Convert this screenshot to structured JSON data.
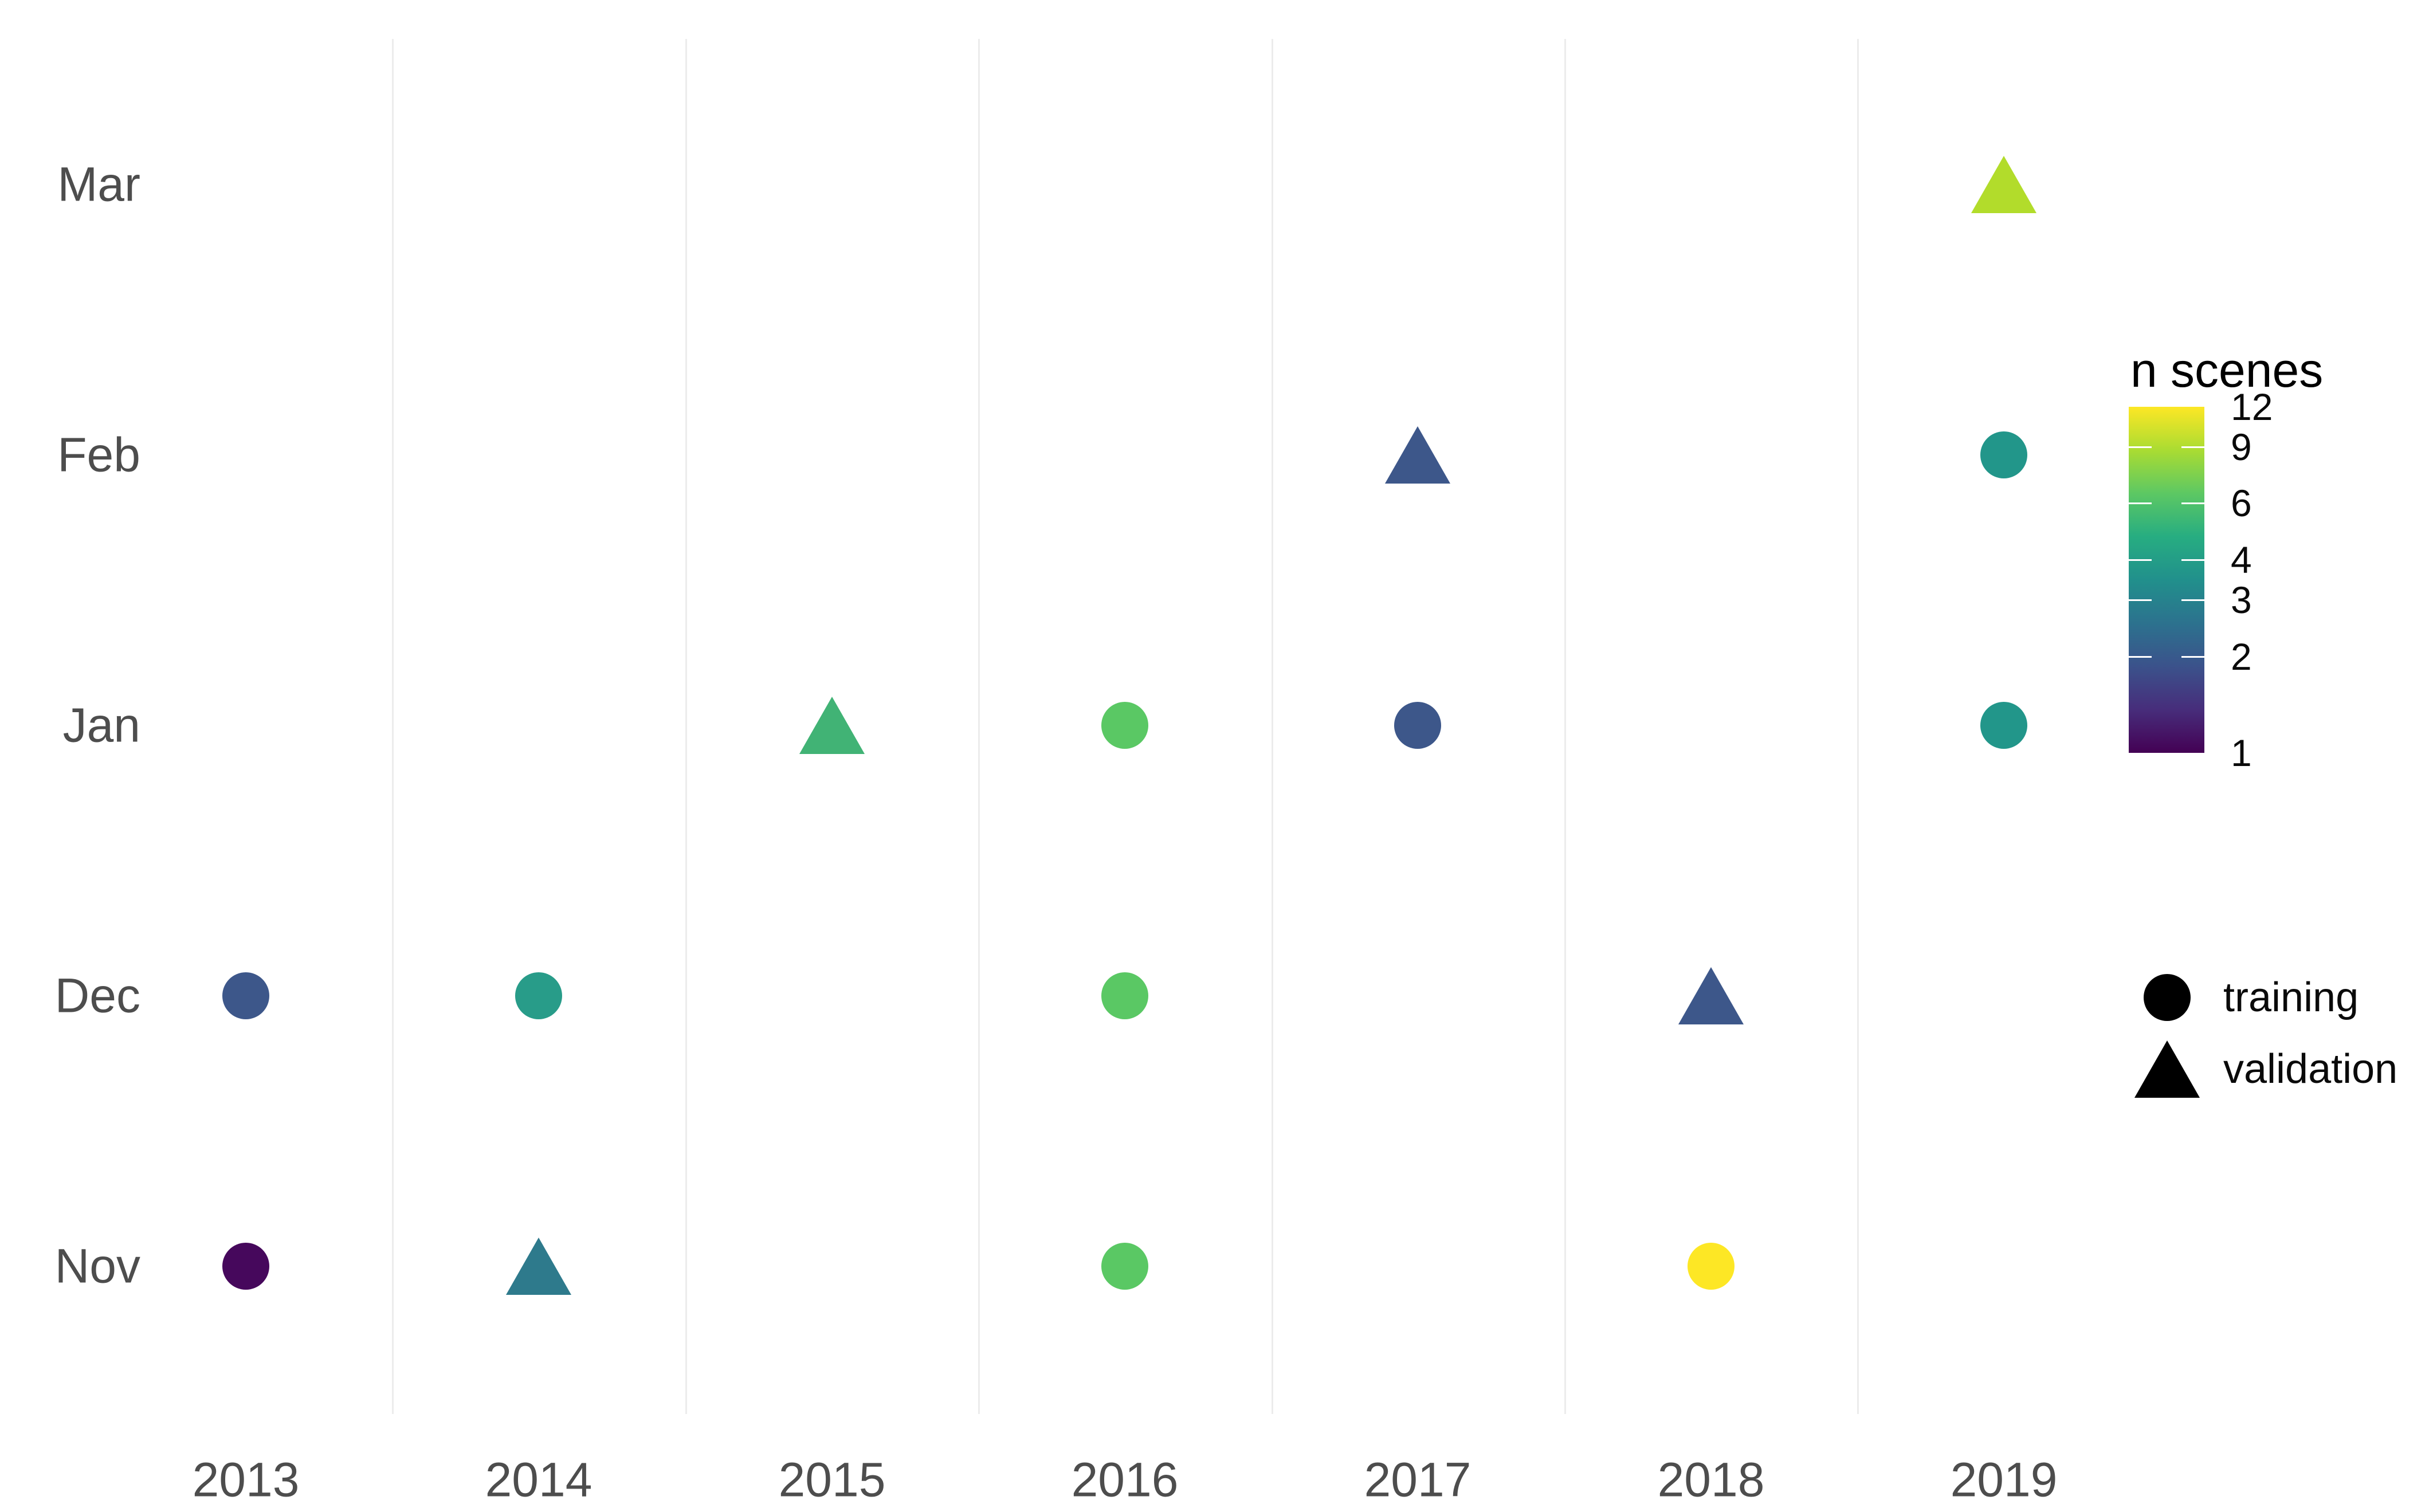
{
  "chart_data": {
    "type": "scatter",
    "description": "Monthly satellite scene counts per season-year, split into training and validation sets",
    "x_categories": [
      "2013",
      "2014",
      "2015",
      "2016",
      "2017",
      "2018",
      "2019"
    ],
    "y_categories_bottom_to_top": [
      "Nov",
      "Dec",
      "Jan",
      "Feb",
      "Mar"
    ],
    "grid": "vertical-separators-only",
    "legend_position": "right",
    "color_scale": {
      "title": "n scenes",
      "palette": "viridis",
      "scale": "log",
      "domain": [
        1,
        12
      ],
      "ticks": [
        12,
        9,
        6,
        4,
        3,
        2,
        1
      ],
      "gradient_stops_top_to_bottom": [
        "#FDE725",
        "#AADC32",
        "#5DC863",
        "#27AD81",
        "#21908C",
        "#2C728E",
        "#3B528B",
        "#472D7B",
        "#440154"
      ]
    },
    "shape_legend": [
      {
        "shape": "circle",
        "label": "training"
      },
      {
        "shape": "triangle",
        "label": "validation"
      }
    ],
    "points": [
      {
        "year": "2013",
        "month": "Nov",
        "set": "training",
        "n_scenes": 1,
        "color": "#46085C"
      },
      {
        "year": "2013",
        "month": "Dec",
        "set": "training",
        "n_scenes": 2,
        "color": "#3D578A"
      },
      {
        "year": "2014",
        "month": "Nov",
        "set": "validation",
        "n_scenes": 3,
        "color": "#2E7A8C"
      },
      {
        "year": "2014",
        "month": "Dec",
        "set": "training",
        "n_scenes": 4,
        "color": "#289C89"
      },
      {
        "year": "2015",
        "month": "Jan",
        "set": "validation",
        "n_scenes": 5,
        "color": "#41B375"
      },
      {
        "year": "2016",
        "month": "Nov",
        "set": "training",
        "n_scenes": 6,
        "color": "#5AC864"
      },
      {
        "year": "2016",
        "month": "Dec",
        "set": "training",
        "n_scenes": 6,
        "color": "#5AC864"
      },
      {
        "year": "2016",
        "month": "Jan",
        "set": "training",
        "n_scenes": 6,
        "color": "#5AC864"
      },
      {
        "year": "2017",
        "month": "Jan",
        "set": "training",
        "n_scenes": 2,
        "color": "#3D578A"
      },
      {
        "year": "2017",
        "month": "Feb",
        "set": "validation",
        "n_scenes": 2,
        "color": "#3D578A"
      },
      {
        "year": "2018",
        "month": "Nov",
        "set": "training",
        "n_scenes": 12,
        "color": "#FDE725"
      },
      {
        "year": "2018",
        "month": "Dec",
        "set": "validation",
        "n_scenes": 2,
        "color": "#3D578A"
      },
      {
        "year": "2019",
        "month": "Jan",
        "set": "training",
        "n_scenes": 4,
        "color": "#22968A"
      },
      {
        "year": "2019",
        "month": "Feb",
        "set": "training",
        "n_scenes": 4,
        "color": "#22968A"
      },
      {
        "year": "2019",
        "month": "Mar",
        "set": "validation",
        "n_scenes": 9,
        "color": "#B2DC2B"
      }
    ]
  },
  "colors": {
    "background": "#FFFFFF",
    "axis_text": "#4D4D4D",
    "gridline": "#ECECEC",
    "legend_text": "#0A0A0A"
  }
}
